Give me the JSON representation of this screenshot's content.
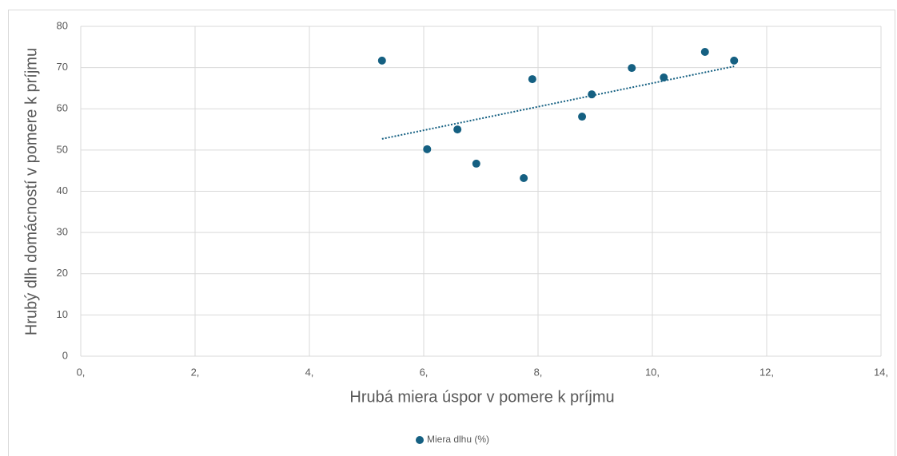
{
  "chart_data": {
    "type": "scatter",
    "x_label": "Hrubá miera úspor v pomere k príjmu",
    "y_label": "Hrubý dlh domácností v pomere k príjmu",
    "series": [
      {
        "name": "Miera dlhu (%)",
        "color": "#156082",
        "x": [
          5.27,
          6.06,
          6.59,
          6.92,
          7.75,
          7.9,
          8.77,
          8.94,
          9.64,
          10.2,
          10.92,
          11.43
        ],
        "values": [
          71.7,
          50.2,
          55.0,
          46.7,
          43.2,
          67.2,
          58.1,
          63.5,
          69.9,
          67.6,
          73.8,
          71.7
        ]
      }
    ],
    "trendline": "linear",
    "xlim": [
      0,
      14
    ],
    "xticks": [
      {
        "value": 0,
        "label": "0,"
      },
      {
        "value": 2,
        "label": "2,"
      },
      {
        "value": 4,
        "label": "4,"
      },
      {
        "value": 6,
        "label": "6,"
      },
      {
        "value": 8,
        "label": "8,"
      },
      {
        "value": 10,
        "label": "10,"
      },
      {
        "value": 12,
        "label": "12,"
      },
      {
        "value": 14,
        "label": "14,"
      }
    ],
    "ylim": [
      0,
      80
    ],
    "yticks": [
      0,
      10,
      20,
      30,
      40,
      50,
      60,
      70,
      80
    ],
    "grid": true,
    "legend": "bottom"
  }
}
